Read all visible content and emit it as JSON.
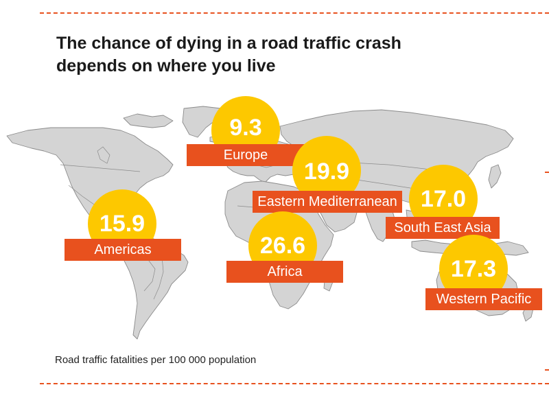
{
  "title": {
    "line1": "The chance of dying in a road traffic crash",
    "line2": "depends on where you live"
  },
  "colors": {
    "bubble": "#fdc800",
    "label_bar": "#e8511e",
    "land": "#d4d4d4",
    "border": "#8a8a8a"
  },
  "regions": [
    {
      "name": "Europe",
      "value": "9.3"
    },
    {
      "name": "Eastern Mediterranean",
      "value": "19.9"
    },
    {
      "name": "South East Asia",
      "value": "17.0"
    },
    {
      "name": "Americas",
      "value": "15.9"
    },
    {
      "name": "Africa",
      "value": "26.6"
    },
    {
      "name": "Western Pacific",
      "value": "17.3"
    }
  ],
  "caption": "Road traffic fatalities per 100 000 population"
}
